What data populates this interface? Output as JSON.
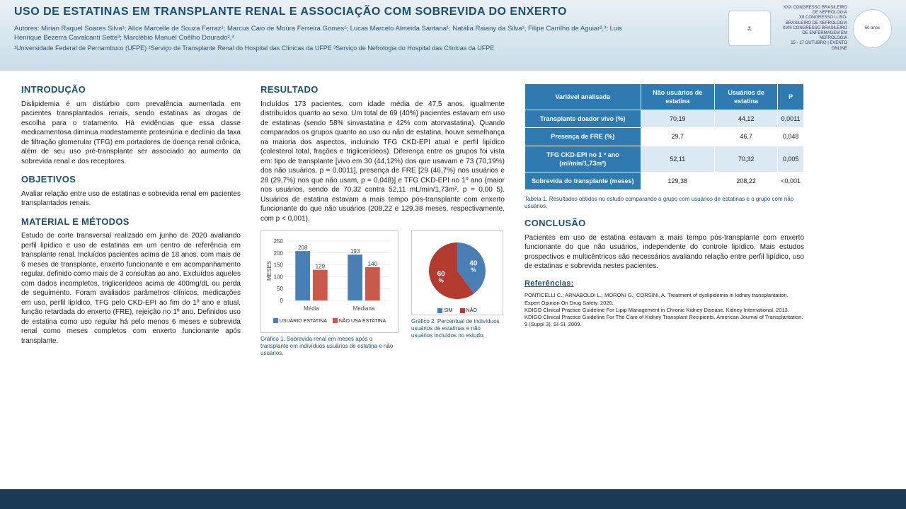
{
  "header": {
    "title": "USO DE ESTATINAS EM TRANSPLANTE RENAL E ASSOCIAÇÃO COM SOBREVIDA DO ENXERTO",
    "authors": "Autores: Mirian Raquel Soares Silva¹; Alice Marcelle de Souza Ferraz¹; Marcus Caio de Moura Ferreira Gomes¹; Lucas Marcelo Almeida Santana¹; Natália Raiany da Silva¹; Filipe Carrilho de Aguiar²,³; Luis Henrique Bezerra Cavalcanti Sette³; Marclébio Manuel Coêlho Dourado²,³",
    "affil": "¹Universidade Federal de Pernambuco (UFPE) ²Serviço de Transplante Renal do Hospital das Clínicas da UFPE ³Serviço de Nefrologia do Hospital das Clínicas da UFPE",
    "congress1": "XXX CONGRESSO BRASILEIRO DE NEFROLOGIA",
    "congress2": "XII CONGRESSO LUSO-BRASILEIRO DE NEFROLOGIA",
    "congress3": "XVIII CONGRESSO BRASILEIRO DE ENFERMAGEM EM NEFROLOGIA",
    "congress4": "15 - 17 OUTUBRO | EVENTO ONLINE",
    "logo_text": "60 anos"
  },
  "intro": {
    "h": "INTRODUÇÃO",
    "p": "Dislipidemia é um distúrbio com prevalência aumentada em pacientes transplantados renais, sendo estatinas as drogas de escolha para o tratamento. Há evidências que essa classe medicamentosa diminua modestamente proteinúria e declínio da taxa de filtração glomerular (TFG) em portadores de doença renal crônica, além de seu uso pré-transplante ser associado ao aumento da sobrevida renal e dos receptores."
  },
  "obj": {
    "h": "OBJETIVOS",
    "p": "Avaliar relação entre uso de estatinas e sobrevida renal em pacientes transplantados renais."
  },
  "mm": {
    "h": "MATERIAL E MÉTODOS",
    "p": "Estudo de corte transversal realizado em junho de 2020 avaliando perfil lipídico e uso de estatinas em um centro de referência em transplante renal. Incluídos pacientes acima de 18 anos, com mais de 6 meses de transplante, enxerto funcionante e em acompanhamento regular, definido como mais de 3 consultas ao ano. Excluídos aqueles com dados incompletos, triglicerídeos acima de 400mg/dL ou perda de seguimento. Foram avaliados parâmetros clínicos, medicações em uso, perfil lipídico, TFG pelo CKD-EPI ao fim do 1º ano e atual, função retardada do enxerto (FRE), rejeição no 1º ano. Definidos uso de estatina como uso regular há pelo menos 6 meses e sobrevida renal como meses completos com enxerto funcionante após transplante."
  },
  "res": {
    "h": "RESULTADO",
    "p": "Incluídos 173 pacientes, com idade média de 47,5 anos, igualmente distribuídos quanto ao sexo. Um total de 69 (40%) pacientes estavam em uso de estatinas (sendo 58% sinvastatina e 42% com atorvastatina). Quando comparados os grupos quanto ao uso ou não de estatina, houve semelhança na maioria dos aspectos, incluindo TFG CKD-EPI atual e perfil lipídico (colesterol total, frações e triglicerídeos). Diferença entre os grupos foi vista em: tipo de transplante [vivo em 30 (44,12%) dos que usavam e 73 (70,19%) dos não usuários, p = 0,0011], presença de FRE [29 (46,7%) nos usuários e 28 (29,7%) nos que não usam, p = 0,048)] e TFG CKD-EPI no 1º ano (maior nos usuários, sendo de 70,32 contra 52,11 mL/min/1,73m², p = 0,00 5). Usuários de estatina estavam a mais tempo pós-transplante com enxerto funcionante do que não usuários (208,22 e 129,38 meses, respectivamente, com p < 0,001)."
  },
  "bar_chart": {
    "ylabel": "MESES",
    "ymax": 250,
    "ystep": 50,
    "categories": [
      "Média",
      "Mediana"
    ],
    "series": [
      {
        "name": "USUÁRIO ESTATINA",
        "color": "#4a7fb5",
        "values": [
          208,
          193
        ]
      },
      {
        "name": "NÃO USA ESTATINA",
        "color": "#c85a4a",
        "values": [
          129,
          140
        ]
      }
    ],
    "caption": "Gráfico 1. Sobrevida renal em meses após o transplante em indivíduos usuários de estatina e não usuários."
  },
  "pie_chart": {
    "slices": [
      {
        "label": "SIM",
        "value": 40,
        "color": "#4a7fb5"
      },
      {
        "label": "NÃO",
        "value": 60,
        "color": "#b23a2f"
      }
    ],
    "caption": "Gráfico 2. Percentual de indivíduos usuários de estatinas e não usuários incluídos no estudo."
  },
  "table": {
    "headers": [
      "Variável analisada",
      "Não usuários de estatina",
      "Usuários de estatina",
      "P"
    ],
    "rows": [
      [
        "Transplante doador vivo (%)",
        "70,19",
        "44,12",
        "0,0011"
      ],
      [
        "Presença de FRE (%)",
        "29,7",
        "46,7",
        "0,048"
      ],
      [
        "TFG CKD-EPI no 1 º ano (ml/min/1,73m²)",
        "52,11",
        "70,32",
        "0,005"
      ],
      [
        "Sobrevida do transplante (meses)",
        "129,38",
        "208,22",
        "<0,001"
      ]
    ],
    "caption": "Tabela 1. Resultados obtidos no estudo comparando o grupo com usuários de estatinas e o grupo com não usuários."
  },
  "concl": {
    "h": "CONCLUSÃO",
    "p": "Pacientes em uso de estatina estavam a mais tempo pós-transplante com enxerto funcionante do que não usuários, independente do controle lipídico. Mais estudos prospectivos e multicêntricos são necessários avaliando relação entre perfil lipídico, uso de estatinas e sobrevida nestes pacientes."
  },
  "refs": {
    "h": "Referências:",
    "items": [
      "PONTICELLI C.; ARNABOLDI L.; MORONI G.; CORSINI, A. Treatment of dyslipidemia in kidney transplantation. Expert Opinion On Drug Safety. 2020.",
      "KDIGO Clinical Practice Guideline For Lipip Management in Chronic Kidney Disease. Kidney International. 2013.",
      "KDIGO Clinical Practice Guideline For The Care of Kidney Transplant Recipients. American Journal of Transplantation. 9 (Suppl 3), SI-SI, 2009."
    ]
  }
}
